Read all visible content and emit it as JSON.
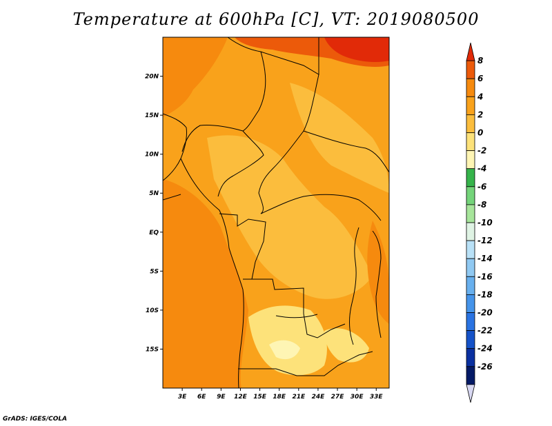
{
  "title": "Temperature at 600hPa [C], VT: 2019080500",
  "credit": "GrADS: IGES/COLA",
  "map": {
    "lat_labels": [
      "20N",
      "15N",
      "10N",
      "5N",
      "EQ",
      "5S",
      "10S",
      "15S"
    ],
    "lat_values": [
      20,
      15,
      10,
      5,
      0,
      -5,
      -10,
      -15
    ],
    "lon_labels": [
      "3E",
      "6E",
      "9E",
      "12E",
      "15E",
      "18E",
      "21E",
      "24E",
      "27E",
      "30E",
      "33E"
    ],
    "lon_values": [
      3,
      6,
      9,
      12,
      15,
      18,
      21,
      24,
      27,
      30,
      33
    ],
    "lat_range": [
      -20,
      25
    ],
    "lon_range": [
      0,
      35
    ]
  },
  "colorbar": {
    "labels": [
      "8",
      "6",
      "4",
      "2",
      "0",
      "-2",
      "-4",
      "-6",
      "-8",
      "-10",
      "-12",
      "-14",
      "-16",
      "-18",
      "-20",
      "-22",
      "-24",
      "-26"
    ],
    "colors": [
      "#e12a08",
      "#ec5a0a",
      "#f68a0e",
      "#f9a21b",
      "#fbbd3d",
      "#fde27a",
      "#fef5b4",
      "#36b44b",
      "#74d47a",
      "#a7e59b",
      "#dff3e4",
      "#b9e1f7",
      "#90c9f2",
      "#68b0ee",
      "#4594ea",
      "#2a73e2",
      "#1552c8",
      "#0a30a0",
      "#041a66",
      "#d8d8f2"
    ]
  },
  "colors": {
    "land_base": "#f9a21b",
    "ocean": "#f68a0e",
    "warm": "#ec5a0a",
    "hot": "#e12a08",
    "cool": "#fbbd3d",
    "cooler": "#fde27a"
  }
}
